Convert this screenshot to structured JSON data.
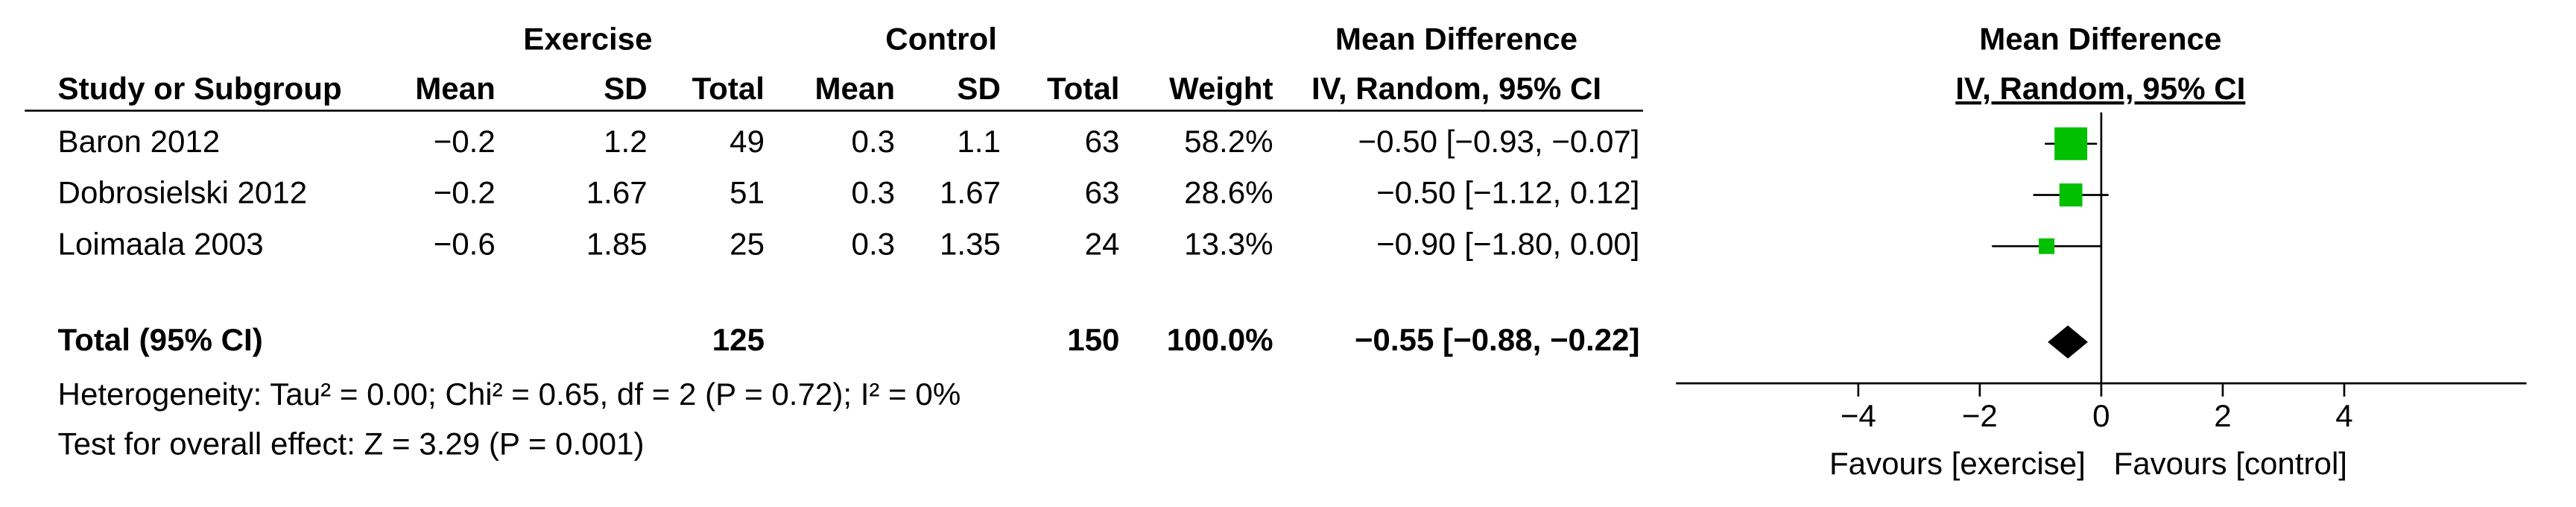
{
  "chart_data": {
    "type": "forest",
    "group_headers": [
      "Exercise",
      "Control",
      "Mean Difference"
    ],
    "columns": [
      "Study or Subgroup",
      "Mean",
      "SD",
      "Total",
      "Mean",
      "SD",
      "Total",
      "Weight",
      "IV, Random, 95% CI"
    ],
    "plot_title": "Mean Difference",
    "plot_subtitle": "IV, Random, 95% CI",
    "studies": [
      {
        "name": "Baron 2012",
        "cells": [
          "−0.2",
          "1.2",
          "49",
          "0.3",
          "1.1",
          "63"
        ],
        "weight": {
          "value": 58.2,
          "label": "58.2%"
        },
        "md": {
          "value": -0.5,
          "low": -0.93,
          "high": -0.07,
          "label": "−0.50 [−0.93, −0.07]"
        }
      },
      {
        "name": "Dobrosielski 2012",
        "cells": [
          "−0.2",
          "1.67",
          "51",
          "0.3",
          "1.67",
          "63"
        ],
        "weight": {
          "value": 28.6,
          "label": "28.6%"
        },
        "md": {
          "value": -0.5,
          "low": -1.12,
          "high": 0.12,
          "label": "−0.50 [−1.12, 0.12]"
        }
      },
      {
        "name": "Loimaala 2003",
        "cells": [
          "−0.6",
          "1.85",
          "25",
          "0.3",
          "1.35",
          "24"
        ],
        "weight": {
          "value": 13.3,
          "label": "13.3%"
        },
        "md": {
          "value": -0.9,
          "low": -1.8,
          "high": 0.0,
          "label": "−0.90 [−1.80, 0.00]"
        }
      }
    ],
    "total": {
      "name": "Total (95% CI)",
      "exercise_total": "125",
      "control_total": "150",
      "weight": {
        "value": 100.0,
        "label": "100.0%"
      },
      "md": {
        "value": -0.55,
        "low": -0.88,
        "high": -0.22,
        "label": "−0.55 [−0.88, −0.22]"
      }
    },
    "heterogeneity": "Heterogeneity: Tau² = 0.00; Chi² = 0.65, df = 2 (P = 0.72); I² = 0%",
    "overall_effect": "Test for overall effect: Z = 3.29 (P = 0.001)",
    "xlim": [
      -7,
      7
    ],
    "xticks": [
      {
        "value": -4,
        "label": "−4"
      },
      {
        "value": -2,
        "label": "−2"
      },
      0,
      2,
      4
    ],
    "favours_left": "Favours [exercise]",
    "favours_right": "Favours [control]",
    "marker_color": "#00c000"
  }
}
